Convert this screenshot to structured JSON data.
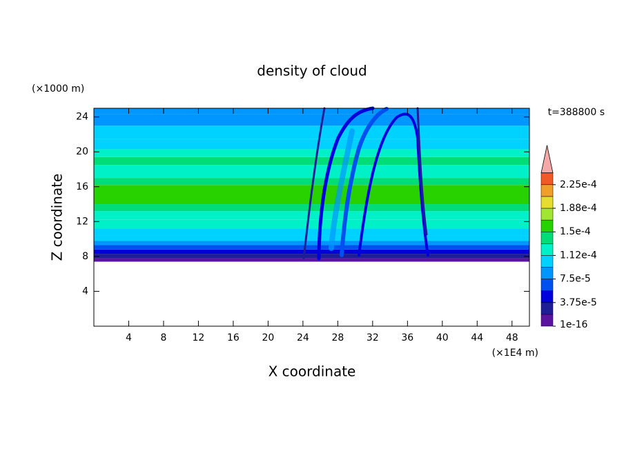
{
  "chart_data": {
    "type": "contour",
    "title": "density of cloud",
    "subtitle": "t=388800 s",
    "x_label": "X coordinate",
    "y_label": "Z coordinate",
    "x_unit": "(×1E4 m)",
    "y_unit": "(×1000 m)",
    "xlim": [
      0,
      50
    ],
    "ylim": [
      0,
      25
    ],
    "xticks": [
      4,
      8,
      12,
      16,
      20,
      24,
      28,
      32,
      36,
      40,
      44,
      48
    ],
    "yticks": [
      4,
      8,
      12,
      16,
      20,
      24
    ],
    "z_bins": [
      7.4,
      7.8,
      8.3,
      8.8,
      9.3,
      9.8,
      10.4,
      11.2,
      12.2,
      13.2,
      14,
      16.2,
      17,
      18.5,
      19.4,
      20.3,
      21.5,
      23,
      24.3,
      25
    ],
    "values": [
      1e-05,
      3e-05,
      5e-05,
      7e-05,
      8e-05,
      0.0001,
      0.00011,
      0.00012,
      0.00013,
      0.00014,
      0.00016,
      0.00014,
      0.00013,
      0.00014,
      0.00012,
      0.00011,
      0.0001,
      9e-05,
      8e-05
    ],
    "colorbar": {
      "levels": [
        1e-16,
        1.875e-05,
        3.75e-05,
        5.625e-05,
        7.5e-05,
        9.375e-05,
        0.0001125,
        0.00013125,
        0.00015,
        0.00016875,
        0.0001875,
        0.00020625,
        0.000225,
        0.00024375
      ],
      "colors": [
        "#5a14a0",
        "#1e1e96",
        "#0000dc",
        "#0050f0",
        "#0096ff",
        "#00d2ff",
        "#00f0c8",
        "#00dc78",
        "#28d200",
        "#a0e632",
        "#e6dc32",
        "#f0a028",
        "#f05a28"
      ],
      "extend_color": "#f4a8a8",
      "ticks": [
        {
          "value": 1e-16,
          "label": "1e-16"
        },
        {
          "value": 3.75e-05,
          "label": "3.75e-5"
        },
        {
          "value": 7.5e-05,
          "label": "7.5e-5"
        },
        {
          "value": 0.0001125,
          "label": "1.12e-4"
        },
        {
          "value": 0.00015,
          "label": "1.5e-4"
        },
        {
          "value": 0.0001875,
          "label": "1.88e-4"
        },
        {
          "value": 0.000225,
          "label": "2.25e-4"
        }
      ]
    }
  }
}
